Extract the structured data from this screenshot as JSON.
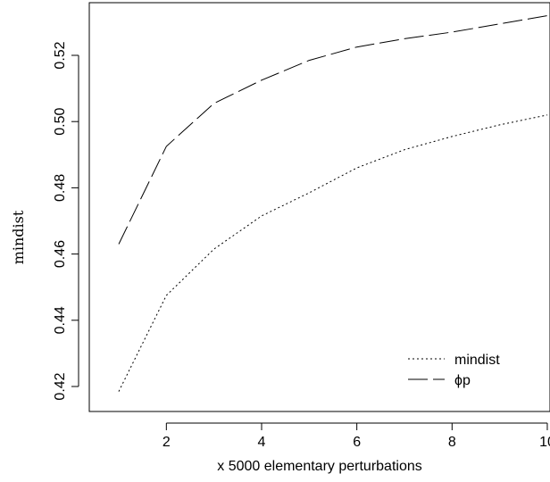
{
  "chart_data": {
    "type": "line",
    "xlabel": "x 5000 elementary perturbations",
    "ylabel": "mindist",
    "xlim": [
      1,
      10
    ],
    "ylim": [
      0.415,
      0.535
    ],
    "xticks": [
      2,
      4,
      6,
      8,
      10
    ],
    "yticks": [
      0.42,
      0.44,
      0.46,
      0.48,
      0.5,
      0.52
    ],
    "ytick_labels": [
      "0.42",
      "0.44",
      "0.46",
      "0.48",
      "0.50",
      "0.52"
    ],
    "series": [
      {
        "name": "mindist",
        "linestyle": "dotted",
        "color": "#000000",
        "x": [
          1,
          2,
          3,
          4,
          5,
          6,
          7,
          8,
          9,
          10
        ],
        "y": [
          0.4185,
          0.4475,
          0.4615,
          0.4715,
          0.4785,
          0.486,
          0.4915,
          0.4955,
          0.499,
          0.502
        ]
      },
      {
        "name": "ϕp",
        "linestyle": "longdash",
        "color": "#000000",
        "x": [
          1,
          2,
          3,
          4,
          5,
          6,
          7,
          8,
          9,
          10
        ],
        "y": [
          0.463,
          0.4925,
          0.5055,
          0.5125,
          0.5185,
          0.5225,
          0.525,
          0.527,
          0.5295,
          0.532
        ]
      }
    ],
    "legend": {
      "position": "bottom-right",
      "entries": [
        {
          "label": "mindist",
          "linestyle": "dotted"
        },
        {
          "label": "ϕp",
          "linestyle": "longdash"
        }
      ]
    },
    "grid": false
  }
}
